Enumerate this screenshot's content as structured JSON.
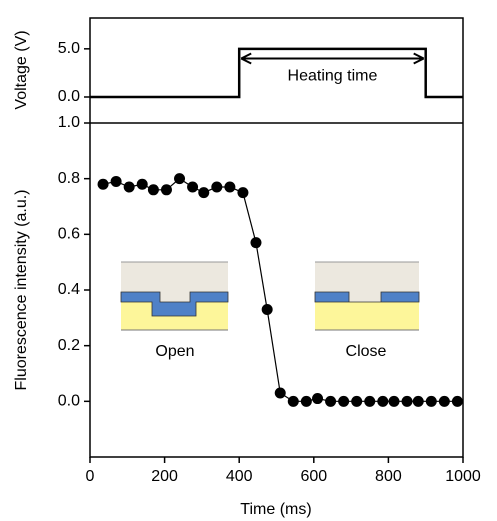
{
  "chart_data": [
    {
      "type": "line",
      "y_label": "Voltage (V)",
      "x": [
        0,
        400,
        400,
        900,
        900,
        1000
      ],
      "series": [
        {
          "color": "#000000",
          "values": [
            0,
            0,
            5,
            5,
            0,
            0
          ]
        }
      ],
      "xlim": [
        0,
        1000
      ],
      "ylim": [
        -2.7,
        8.2
      ],
      "yticks": [
        {
          "value": 0,
          "label": "0.0"
        },
        {
          "value": 5,
          "label": "5.0"
        }
      ],
      "annotation": {
        "text": "Heating time",
        "from": 400,
        "to": 900,
        "at": 4
      }
    },
    {
      "type": "scatter",
      "x_label": "Time (ms)",
      "y_label": "Fluorescence intensity (a.u.)",
      "x": [
        35,
        70,
        105,
        140,
        170,
        205,
        240,
        275,
        305,
        340,
        375,
        410,
        445,
        475,
        510,
        545,
        580,
        610,
        645,
        680,
        715,
        750,
        785,
        815,
        850,
        880,
        915,
        950,
        985
      ],
      "series": [
        {
          "color": "#000000",
          "values": [
            0.78,
            0.79,
            0.77,
            0.78,
            0.76,
            0.76,
            0.8,
            0.77,
            0.75,
            0.77,
            0.77,
            0.75,
            0.57,
            0.33,
            0.03,
            0.0,
            0.0,
            0.01,
            0.0,
            0.0,
            0.0,
            0.0,
            0.0,
            0.0,
            0.0,
            0.0,
            0.0,
            0.0,
            0.0
          ]
        }
      ],
      "xlim": [
        0,
        1000
      ],
      "xticks": [
        0,
        200,
        400,
        600,
        800,
        1000
      ],
      "ylim": [
        -0.2,
        1.0
      ],
      "yticks": [
        {
          "value": 0,
          "label": "0.0"
        },
        {
          "value": 0.2,
          "label": "0.2"
        },
        {
          "value": 0.4,
          "label": "0.4"
        },
        {
          "value": 0.6,
          "label": "0.6"
        },
        {
          "value": 0.8,
          "label": "0.8"
        },
        {
          "value": 1.0,
          "label": "1.0"
        }
      ],
      "insets": [
        "Open",
        "Close"
      ]
    }
  ]
}
